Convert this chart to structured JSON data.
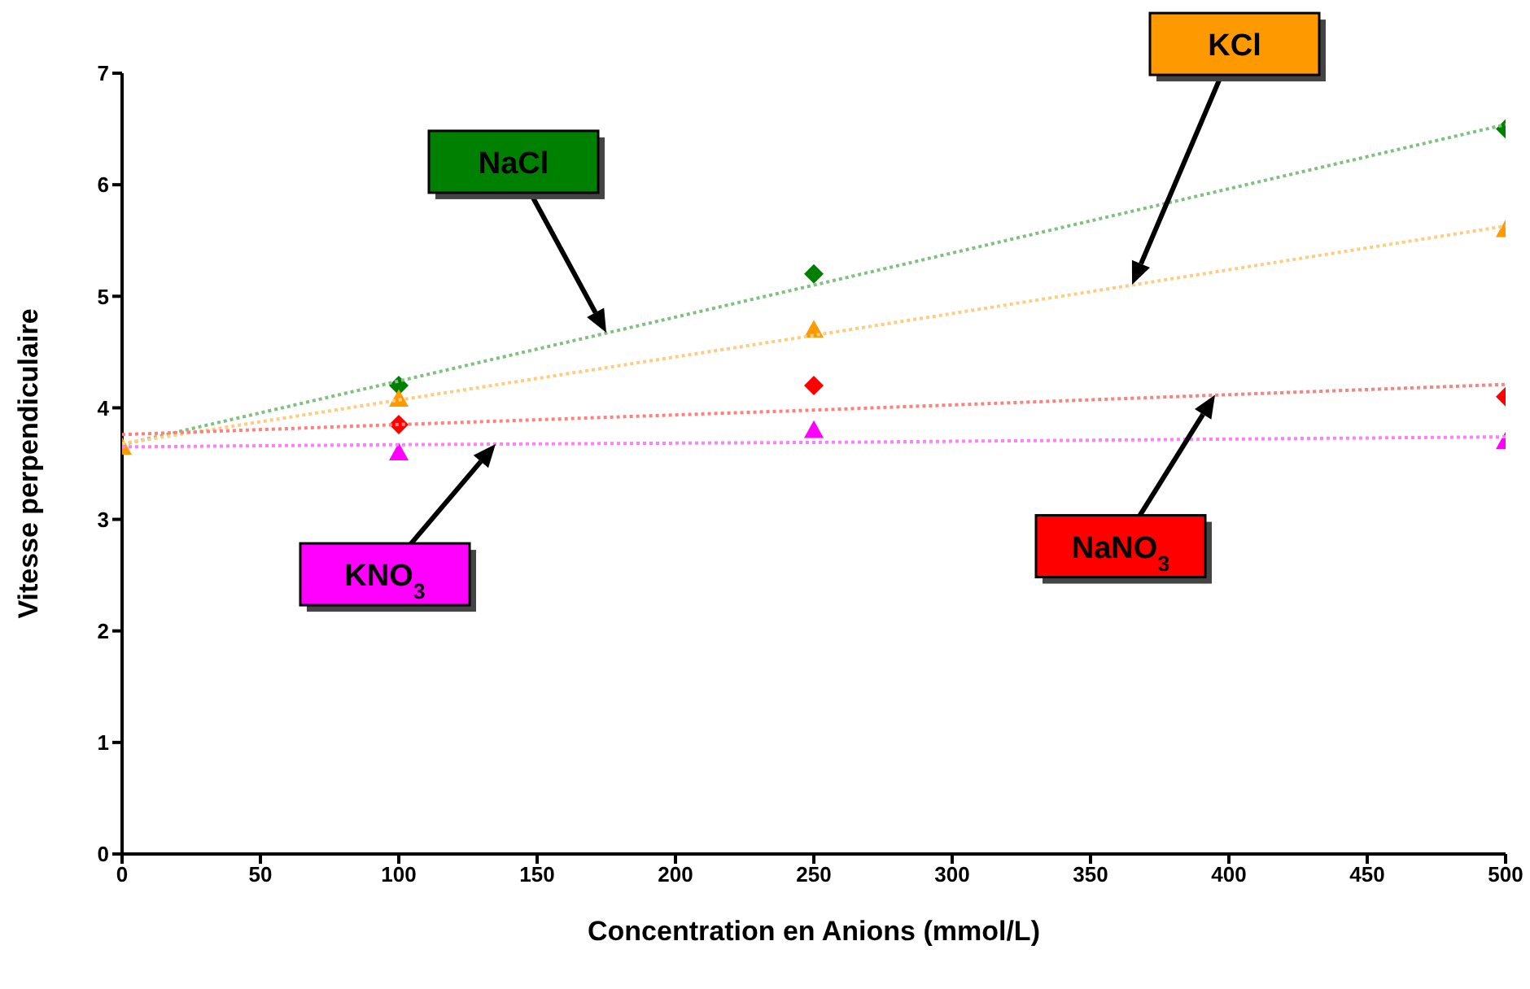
{
  "chart_data": {
    "type": "scatter",
    "xlabel": "Concentration en Anions (mmol/L)",
    "ylabel": "Vitesse perpendiculaire",
    "x": [
      0,
      100,
      250,
      500
    ],
    "xlim": [
      0,
      500
    ],
    "xticks": [
      0,
      50,
      100,
      150,
      200,
      250,
      300,
      350,
      400,
      450,
      500
    ],
    "ylim": [
      0,
      7
    ],
    "yticks": [
      0,
      1,
      2,
      3,
      4,
      5,
      6,
      7
    ],
    "grid": false,
    "legend": false,
    "series": [
      {
        "name": "NaCl",
        "color": "#008000",
        "marker": "diamond",
        "values": [
          null,
          4.2,
          5.2,
          6.5
        ]
      },
      {
        "name": "KCl",
        "color": "#ff9900",
        "marker": "triangle",
        "values": [
          3.65,
          4.08,
          4.7,
          5.6
        ]
      },
      {
        "name": "NaNO$_{3}$",
        "color": "#ff0000",
        "marker": "diamond",
        "values": [
          null,
          3.85,
          4.2,
          4.1
        ]
      },
      {
        "name": "KNO$_{3}$",
        "color": "#ff00ff",
        "marker": "triangle",
        "values": [
          null,
          3.6,
          3.8,
          3.7
        ]
      },
      {
        "type": "line",
        "color": "#80c080",
        "line_style": "dotted",
        "marker": "none",
        "values": [
          3.67,
          4.24,
          5.1,
          6.54
        ]
      },
      {
        "type": "line",
        "color": "#ffcc80",
        "line_style": "dotted",
        "marker": "none",
        "values": [
          3.68,
          4.07,
          4.65,
          5.63
        ]
      },
      {
        "type": "line",
        "color": "#ff8080",
        "line_style": "dotted",
        "marker": "none",
        "values": [
          3.76,
          3.85,
          3.98,
          4.21
        ]
      },
      {
        "type": "line",
        "color": "#ff80ff",
        "line_style": "dotted",
        "marker": "none",
        "values": [
          3.65,
          3.67,
          3.69,
          3.74
        ]
      }
    ]
  }
}
